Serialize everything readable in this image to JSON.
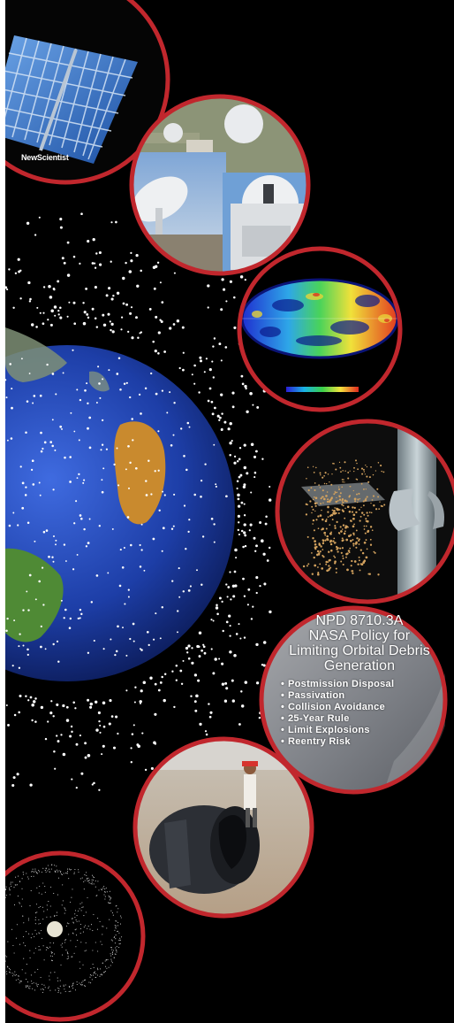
{
  "logo_text": "NewScientist",
  "policy": {
    "title_lines": [
      "NPD 8710.3A",
      "NASA Policy for",
      "Limiting Orbital Debris",
      "Generation"
    ],
    "bullets": [
      "Postmission Disposal",
      "Passivation",
      "Collision Avoidance",
      "25-Year Rule",
      "Limit Explosions",
      "Reentry Risk"
    ]
  },
  "colors": {
    "ring": "#c1272d",
    "space": "#000000",
    "ocean": "#1f3fa3",
    "land": "#c98a2e"
  }
}
